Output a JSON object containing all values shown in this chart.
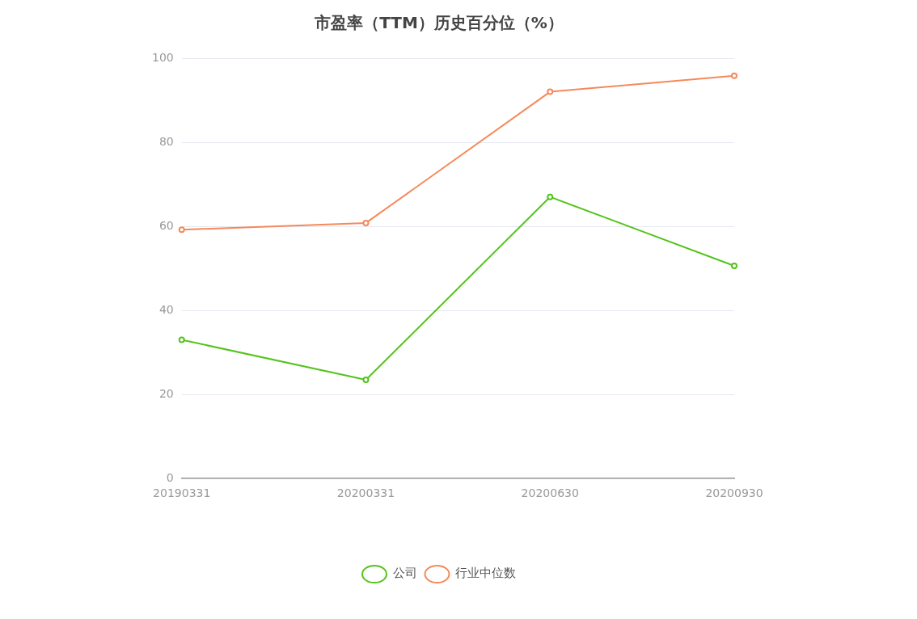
{
  "chart_data": {
    "type": "line",
    "title": "市盈率（TTM）历史百分位（%）",
    "categories": [
      "20190331",
      "20200331",
      "20200630",
      "20200930"
    ],
    "series": [
      {
        "name": "公司",
        "color": "#52c41a",
        "values": [
          33.0,
          23.5,
          67.0,
          50.6
        ]
      },
      {
        "name": "行业中位数",
        "color": "#f5895a",
        "values": [
          59.2,
          60.8,
          92.0,
          95.8
        ]
      }
    ],
    "ylim": [
      0,
      100
    ],
    "yticks": [
      0,
      20,
      40,
      60,
      80,
      100
    ],
    "grid": "y",
    "legend": "bottom",
    "marker": "circle",
    "line_style": "solid"
  }
}
